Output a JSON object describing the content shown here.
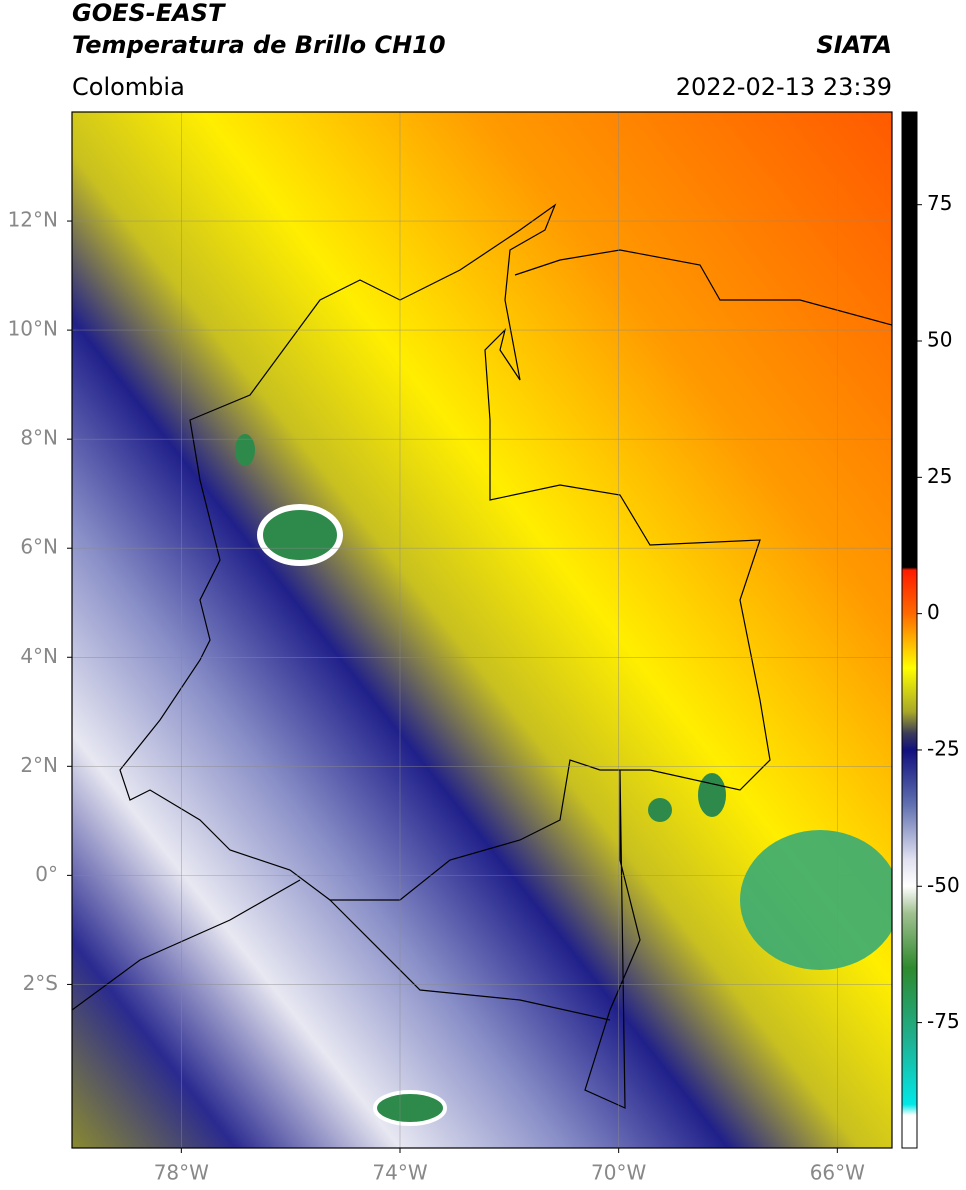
{
  "chart_data": {
    "type": "map",
    "title": "GOES-EAST",
    "subtitle": "Temperatura de Brillo CH10",
    "source": "SIATA",
    "region": "Colombia",
    "timestamp": "2022-02-13 23:39",
    "xlim": [
      -80,
      -65
    ],
    "ylim": [
      -5,
      14
    ],
    "xticks": [
      {
        "value": -78,
        "label": "78°W"
      },
      {
        "value": -74,
        "label": "74°W"
      },
      {
        "value": -70,
        "label": "70°W"
      },
      {
        "value": -66,
        "label": "66°W"
      }
    ],
    "yticks": [
      {
        "value": 12,
        "label": "12°N"
      },
      {
        "value": 10,
        "label": "10°N"
      },
      {
        "value": 8,
        "label": "8°N"
      },
      {
        "value": 6,
        "label": "6°N"
      },
      {
        "value": 4,
        "label": "4°N"
      },
      {
        "value": 2,
        "label": "2°N"
      },
      {
        "value": 0,
        "label": "0°"
      },
      {
        "value": -2,
        "label": "2°S"
      }
    ],
    "grid": true,
    "colorbar": {
      "lim": [
        -98,
        92
      ],
      "ticks": [
        75,
        50,
        25,
        0,
        -25,
        -50,
        -75
      ],
      "colormap": [
        {
          "value": 92,
          "color": "#000000"
        },
        {
          "value": 8.5,
          "color": "#000000"
        },
        {
          "value": 8,
          "color": "#ff1a00"
        },
        {
          "value": 0,
          "color": "#ff6a00"
        },
        {
          "value": -10,
          "color": "#ffff00"
        },
        {
          "value": -18,
          "color": "#a8a828"
        },
        {
          "value": -22,
          "color": "#3a3a5a"
        },
        {
          "value": -25,
          "color": "#10107e"
        },
        {
          "value": -35,
          "color": "#6070b0"
        },
        {
          "value": -45,
          "color": "#e0e0f0"
        },
        {
          "value": -50,
          "color": "#ffffff"
        },
        {
          "value": -55,
          "color": "#a0c090"
        },
        {
          "value": -65,
          "color": "#2e8a2e"
        },
        {
          "value": -78,
          "color": "#20b090"
        },
        {
          "value": -90,
          "color": "#00e8e8"
        },
        {
          "value": -92,
          "color": "#ffffff"
        },
        {
          "value": -98,
          "color": "#ffffff"
        }
      ]
    }
  }
}
